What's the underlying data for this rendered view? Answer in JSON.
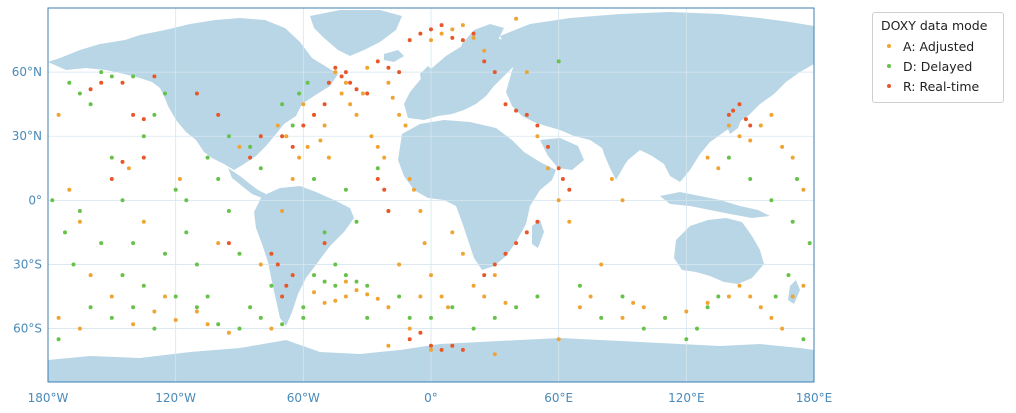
{
  "map": {
    "colors": {
      "land": "#b9d6e6",
      "ocean": "#ffffff",
      "grid": "#d6e6ef",
      "frame": "#3e7fb1",
      "tick_text": "#4a8ab8"
    },
    "x_ticks": [
      "180°W",
      "120°W",
      "60°W",
      "0°",
      "60°E",
      "120°E",
      "180°E"
    ],
    "y_ticks": [
      "60°N",
      "30°N",
      "0°",
      "30°S",
      "60°S"
    ],
    "lon_range": [
      -180,
      180
    ],
    "lat_range": [
      -85,
      90
    ]
  },
  "legend": {
    "title": "DOXY data mode",
    "items": [
      {
        "label": "A: Adjusted",
        "color": "#f0a432"
      },
      {
        "label": "D: Delayed",
        "color": "#66c248"
      },
      {
        "label": "R: Real-time",
        "color": "#e8572a"
      }
    ]
  },
  "chart_data": {
    "type": "scatter",
    "title": "",
    "xlabel": "",
    "ylabel": "",
    "xlim": [
      -180,
      180
    ],
    "ylim": [
      -85,
      90
    ],
    "legend_placement": "outside-top-right",
    "series": [
      {
        "name": "A: Adjusted",
        "color": "#f0a432",
        "points": [
          [
            -175,
            40
          ],
          [
            -170,
            5
          ],
          [
            -165,
            -10
          ],
          [
            -160,
            -35
          ],
          [
            -150,
            -45
          ],
          [
            -142,
            15
          ],
          [
            -135,
            -10
          ],
          [
            -125,
            -45
          ],
          [
            -118,
            10
          ],
          [
            -110,
            -52
          ],
          [
            -100,
            -20
          ],
          [
            -90,
            25
          ],
          [
            -80,
            -30
          ],
          [
            -75,
            -60
          ],
          [
            -60,
            45
          ],
          [
            -55,
            40
          ],
          [
            -50,
            35
          ],
          [
            -48,
            20
          ],
          [
            -45,
            60
          ],
          [
            -42,
            50
          ],
          [
            -40,
            55
          ],
          [
            -38,
            45
          ],
          [
            -35,
            40
          ],
          [
            -32,
            50
          ],
          [
            -30,
            62
          ],
          [
            -28,
            30
          ],
          [
            -25,
            25
          ],
          [
            -22,
            20
          ],
          [
            -20,
            55
          ],
          [
            -18,
            48
          ],
          [
            -15,
            40
          ],
          [
            -12,
            35
          ],
          [
            -10,
            10
          ],
          [
            -8,
            5
          ],
          [
            -5,
            -5
          ],
          [
            -3,
            -20
          ],
          [
            0,
            -35
          ],
          [
            5,
            -45
          ],
          [
            10,
            -15
          ],
          [
            15,
            -25
          ],
          [
            20,
            -40
          ],
          [
            25,
            -45
          ],
          [
            30,
            -35
          ],
          [
            35,
            -48
          ],
          [
            -40,
            -45
          ],
          [
            -45,
            -47
          ],
          [
            -35,
            -42
          ],
          [
            -30,
            -44
          ],
          [
            -25,
            -46
          ],
          [
            -50,
            -48
          ],
          [
            -55,
            -43
          ],
          [
            -20,
            -50
          ],
          [
            -10,
            -60
          ],
          [
            0,
            75
          ],
          [
            5,
            78
          ],
          [
            10,
            80
          ],
          [
            15,
            82
          ],
          [
            20,
            76
          ],
          [
            25,
            70
          ],
          [
            40,
            85
          ],
          [
            45,
            60
          ],
          [
            50,
            30
          ],
          [
            55,
            15
          ],
          [
            60,
            0
          ],
          [
            65,
            -10
          ],
          [
            70,
            -50
          ],
          [
            75,
            -45
          ],
          [
            80,
            -30
          ],
          [
            85,
            10
          ],
          [
            90,
            0
          ],
          [
            95,
            -48
          ],
          [
            100,
            -50
          ],
          [
            110,
            -55
          ],
          [
            120,
            -52
          ],
          [
            130,
            -48
          ],
          [
            140,
            -45
          ],
          [
            145,
            -40
          ],
          [
            150,
            -45
          ],
          [
            155,
            -50
          ],
          [
            160,
            -55
          ],
          [
            165,
            -60
          ],
          [
            170,
            -45
          ],
          [
            175,
            -40
          ],
          [
            140,
            35
          ],
          [
            145,
            30
          ],
          [
            150,
            28
          ],
          [
            155,
            35
          ],
          [
            160,
            40
          ],
          [
            165,
            25
          ],
          [
            170,
            20
          ],
          [
            175,
            5
          ],
          [
            130,
            20
          ],
          [
            135,
            15
          ],
          [
            -175,
            -55
          ],
          [
            -165,
            -60
          ],
          [
            -140,
            -58
          ],
          [
            -130,
            -52
          ],
          [
            -120,
            -56
          ],
          [
            -105,
            -58
          ],
          [
            -95,
            -62
          ],
          [
            -70,
            -5
          ],
          [
            -65,
            10
          ],
          [
            -62,
            20
          ],
          [
            -58,
            25
          ],
          [
            -52,
            28
          ],
          [
            -68,
            30
          ],
          [
            -72,
            35
          ],
          [
            0,
            -70
          ],
          [
            30,
            -72
          ],
          [
            60,
            -65
          ],
          [
            90,
            -55
          ],
          [
            -20,
            -68
          ],
          [
            -40,
            -38
          ],
          [
            -15,
            -30
          ],
          [
            -5,
            -45
          ],
          [
            8,
            -50
          ]
        ]
      },
      {
        "name": "D: Delayed",
        "color": "#66c248",
        "points": [
          [
            -170,
            55
          ],
          [
            -165,
            50
          ],
          [
            -160,
            45
          ],
          [
            -150,
            20
          ],
          [
            -145,
            0
          ],
          [
            -140,
            -20
          ],
          [
            -135,
            30
          ],
          [
            -130,
            40
          ],
          [
            -125,
            50
          ],
          [
            -120,
            5
          ],
          [
            -115,
            -15
          ],
          [
            -110,
            -30
          ],
          [
            -105,
            -45
          ],
          [
            -100,
            10
          ],
          [
            -95,
            -5
          ],
          [
            -90,
            -25
          ],
          [
            -85,
            -50
          ],
          [
            -80,
            15
          ],
          [
            -75,
            -40
          ],
          [
            -70,
            45
          ],
          [
            -65,
            35
          ],
          [
            -60,
            -55
          ],
          [
            -55,
            10
          ],
          [
            -50,
            -15
          ],
          [
            -45,
            -30
          ],
          [
            -40,
            5
          ],
          [
            -35,
            -10
          ],
          [
            -30,
            -55
          ],
          [
            -25,
            15
          ],
          [
            -20,
            -5
          ],
          [
            -15,
            -45
          ],
          [
            -10,
            -55
          ],
          [
            0,
            -55
          ],
          [
            10,
            -50
          ],
          [
            20,
            -60
          ],
          [
            30,
            -55
          ],
          [
            40,
            -50
          ],
          [
            50,
            -45
          ],
          [
            60,
            65
          ],
          [
            70,
            -40
          ],
          [
            80,
            -55
          ],
          [
            90,
            -45
          ],
          [
            100,
            -60
          ],
          [
            110,
            -55
          ],
          [
            120,
            -65
          ],
          [
            125,
            -60
          ],
          [
            130,
            -50
          ],
          [
            135,
            -45
          ],
          [
            140,
            20
          ],
          [
            150,
            10
          ],
          [
            160,
            0
          ],
          [
            170,
            -10
          ],
          [
            175,
            -65
          ],
          [
            -175,
            -65
          ],
          [
            -160,
            -50
          ],
          [
            -150,
            -55
          ],
          [
            -140,
            -50
          ],
          [
            -130,
            -60
          ],
          [
            -120,
            -45
          ],
          [
            -110,
            -50
          ],
          [
            -100,
            -58
          ],
          [
            -90,
            -60
          ],
          [
            -80,
            -55
          ],
          [
            -70,
            -58
          ],
          [
            -45,
            -40
          ],
          [
            -40,
            -35
          ],
          [
            -35,
            -38
          ],
          [
            -30,
            -40
          ],
          [
            -50,
            -38
          ],
          [
            -55,
            -35
          ],
          [
            -60,
            -50
          ],
          [
            -165,
            -5
          ],
          [
            -155,
            -20
          ],
          [
            -145,
            -35
          ],
          [
            -135,
            -40
          ],
          [
            -125,
            -25
          ],
          [
            -115,
            0
          ],
          [
            -105,
            20
          ],
          [
            -95,
            30
          ],
          [
            -85,
            25
          ],
          [
            -62,
            50
          ],
          [
            -58,
            55
          ],
          [
            -150,
            58
          ],
          [
            -155,
            60
          ],
          [
            -140,
            58
          ],
          [
            -178,
            0
          ],
          [
            -172,
            -15
          ],
          [
            -168,
            -30
          ],
          [
            178,
            -20
          ],
          [
            172,
            10
          ],
          [
            168,
            -35
          ],
          [
            162,
            -45
          ]
        ]
      },
      {
        "name": "R: Real-time",
        "color": "#e8572a",
        "points": [
          [
            -160,
            52
          ],
          [
            -155,
            55
          ],
          [
            -145,
            55
          ],
          [
            -140,
            40
          ],
          [
            -135,
            38
          ],
          [
            -130,
            58
          ],
          [
            -110,
            50
          ],
          [
            -95,
            -20
          ],
          [
            -85,
            20
          ],
          [
            -80,
            30
          ],
          [
            -70,
            30
          ],
          [
            -65,
            25
          ],
          [
            -60,
            35
          ],
          [
            -55,
            40
          ],
          [
            -50,
            45
          ],
          [
            -48,
            55
          ],
          [
            -45,
            62
          ],
          [
            -42,
            58
          ],
          [
            -40,
            60
          ],
          [
            -38,
            55
          ],
          [
            -35,
            52
          ],
          [
            -30,
            50
          ],
          [
            -25,
            65
          ],
          [
            -20,
            62
          ],
          [
            -15,
            60
          ],
          [
            -10,
            75
          ],
          [
            -5,
            78
          ],
          [
            0,
            80
          ],
          [
            5,
            82
          ],
          [
            10,
            76
          ],
          [
            15,
            75
          ],
          [
            20,
            78
          ],
          [
            25,
            65
          ],
          [
            30,
            60
          ],
          [
            35,
            45
          ],
          [
            40,
            42
          ],
          [
            45,
            40
          ],
          [
            50,
            35
          ],
          [
            55,
            25
          ],
          [
            60,
            15
          ],
          [
            62,
            10
          ],
          [
            65,
            5
          ],
          [
            50,
            -10
          ],
          [
            45,
            -15
          ],
          [
            40,
            -20
          ],
          [
            35,
            -25
          ],
          [
            30,
            -30
          ],
          [
            25,
            -35
          ],
          [
            -25,
            10
          ],
          [
            -22,
            5
          ],
          [
            -20,
            -5
          ],
          [
            -50,
            -20
          ],
          [
            -65,
            -35
          ],
          [
            -68,
            -40
          ],
          [
            -70,
            -45
          ],
          [
            -72,
            -30
          ],
          [
            -75,
            -25
          ],
          [
            0,
            -68
          ],
          [
            5,
            -70
          ],
          [
            10,
            -68
          ],
          [
            15,
            -70
          ],
          [
            -10,
            -65
          ],
          [
            -5,
            -62
          ],
          [
            140,
            40
          ],
          [
            142,
            42
          ],
          [
            145,
            45
          ],
          [
            148,
            38
          ],
          [
            150,
            35
          ],
          [
            -145,
            18
          ],
          [
            -150,
            10
          ],
          [
            -135,
            20
          ],
          [
            -100,
            40
          ]
        ]
      }
    ]
  }
}
